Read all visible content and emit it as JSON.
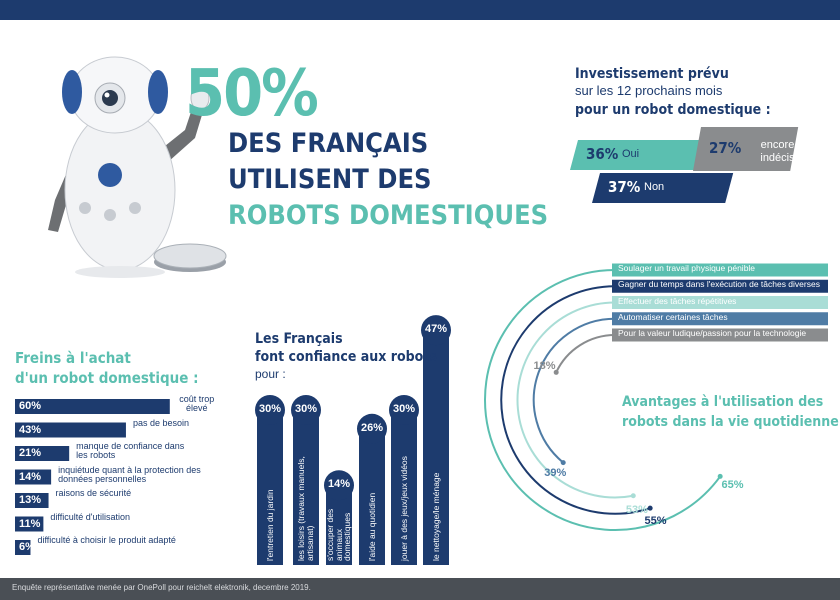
{
  "header": {
    "big_number": "50%",
    "lines": [
      "DES FRANÇAIS",
      "UTILISENT DES",
      "ROBOTS DOMESTIQUES"
    ]
  },
  "chart_data": [
    {
      "type": "parallelogram",
      "title": [
        "Investissement prévu",
        "sur les 12 prochains mois",
        "pour un robot domestique :"
      ],
      "categories": [
        "Oui",
        "Non",
        "encore indécis"
      ],
      "values": [
        36,
        37,
        27
      ],
      "value_labels": [
        "36%",
        "37%",
        "27%"
      ],
      "colors": [
        "#5bbfb0",
        "#1d3b6e",
        "#8a8c8e"
      ]
    },
    {
      "type": "hbar",
      "title": [
        "Freins à l'achat",
        "d'un robot domestique :"
      ],
      "categories": [
        "coût trop élevé",
        "pas de besoin",
        "manque de confiance dans les robots",
        "inquiétude quant à la protection des données personnelles",
        "raisons de sécurité",
        "difficulté d'utilisation",
        "difficulté à choisir le produit adapté"
      ],
      "values": [
        60,
        43,
        21,
        14,
        13,
        11,
        6
      ],
      "value_labels": [
        "60%",
        "43%",
        "21%",
        "14%",
        "13%",
        "11%",
        "6%"
      ],
      "color": "#1d3b6e"
    },
    {
      "type": "column",
      "title": [
        "Les Français",
        "font confiance aux robots"
      ],
      "subtitle": "pour :",
      "categories": [
        "l'entretien du jardin",
        "les loisirs (travaux manuels, artisanat)",
        "s'occuper des animaux domestiques",
        "l'aide au quotidien",
        "jouer à des jeux/jeux vidéos",
        "le nettoyage/le ménage"
      ],
      "values": [
        30,
        30,
        14,
        26,
        30,
        47
      ],
      "value_labels": [
        "30%",
        "30%",
        "14%",
        "26%",
        "30%",
        "47%"
      ],
      "color": "#1d3b6e"
    },
    {
      "type": "radial",
      "title": [
        "Avantages à l'utilisation des",
        "robots dans la vie quotidienne :"
      ],
      "categories": [
        "Soulager un travail physique pénible",
        "Gagner du temps dans l'exécution de tâches diverses",
        "Effectuer des tâches répétitives",
        "Automatiser certaines tâches",
        "Pour la valeur ludique/passion pour la technologie"
      ],
      "values": [
        65,
        55,
        53,
        39,
        18
      ],
      "value_labels": [
        "65%",
        "55%",
        "53%",
        "39%",
        "18%"
      ],
      "colors": [
        "#5bbfb0",
        "#1d3b6e",
        "#a9ddd6",
        "#4f7ca5",
        "#8a8c8e"
      ]
    }
  ],
  "footer": "Enquête représentative menée par OnePoll pour reichelt elektronik, decembre 2019."
}
